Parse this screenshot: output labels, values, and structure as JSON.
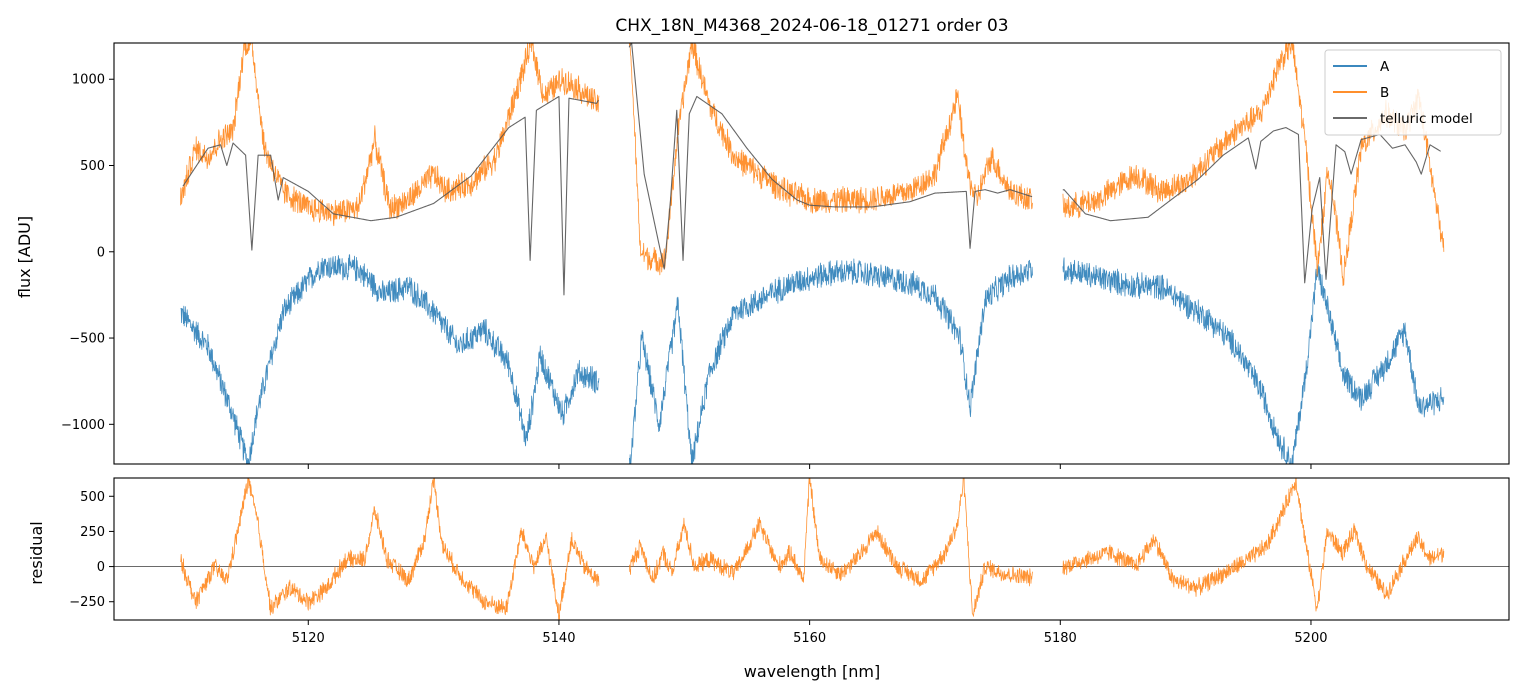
{
  "figure": {
    "title": "CHX_18N_M4368_2024-06-18_01271  order 03"
  },
  "chart_data": [
    {
      "type": "line",
      "panel": "top",
      "ylabel": "flux [ADU]",
      "xlim": [
        5104.5,
        5215.8
      ],
      "ylim": [
        -1230,
        1210
      ],
      "y_ticks": [
        1000,
        500,
        0,
        -500,
        -1000
      ],
      "y_tick_labels": [
        "1000",
        "500",
        "0",
        "−500",
        "−1000"
      ],
      "x_ticks": [
        5120,
        5140,
        5160,
        5180,
        5200
      ],
      "x_tick_labels_visible": false,
      "gaps": [
        [
          5143.2,
          5145.6
        ],
        [
          5177.8,
          5180.2
        ]
      ],
      "legend": {
        "placement": "top-right",
        "entries": [
          "A",
          "B",
          "telluric model"
        ]
      },
      "series": [
        {
          "name": "A",
          "color": "#1f77b4",
          "description_points_x": [
            5109.8,
            5112,
            5114,
            5115.2,
            5116,
            5118,
            5121,
            5124,
            5126,
            5128,
            5130,
            5132,
            5134,
            5136,
            5137.4,
            5138.5,
            5140.3,
            5141.5,
            5143.1,
            5145.7,
            5146.6,
            5148,
            5149.5,
            5150.6,
            5152,
            5154,
            5156,
            5158,
            5160,
            5162,
            5164,
            5166,
            5168,
            5170,
            5172,
            5172.8,
            5174,
            5176,
            5177.7,
            5180.3,
            5183,
            5186,
            5188,
            5190,
            5192,
            5194,
            5196,
            5197.5,
            5198.5,
            5199.6,
            5200.5,
            5201.4,
            5202.5,
            5204,
            5206,
            5207.5,
            5208.6,
            5210.6
          ],
          "values": [
            -350,
            -550,
            -950,
            -1230,
            -900,
            -350,
            -80,
            -100,
            -250,
            -200,
            -350,
            -550,
            -450,
            -650,
            -1100,
            -600,
            -950,
            -700,
            -750,
            -1230,
            -500,
            -1000,
            -300,
            -1230,
            -700,
            -350,
            -280,
            -200,
            -150,
            -120,
            -120,
            -150,
            -180,
            -250,
            -500,
            -900,
            -280,
            -150,
            -100,
            -100,
            -150,
            -200,
            -200,
            -300,
            -400,
            -550,
            -800,
            -1100,
            -1230,
            -700,
            -100,
            -350,
            -700,
            -850,
            -650,
            -450,
            -900,
            -850
          ]
        },
        {
          "name": "B",
          "color": "#ff7f0e",
          "description_points_x": [
            5109.8,
            5111,
            5112,
            5113,
            5114,
            5114.9,
            5115.5,
            5116.5,
            5118,
            5120,
            5122,
            5124,
            5125.3,
            5126.5,
            5128,
            5130,
            5131,
            5133,
            5135,
            5136.5,
            5137.8,
            5138.8,
            5140.3,
            5141.5,
            5143.1,
            5145.7,
            5146.5,
            5147.5,
            5148.5,
            5149.5,
            5150.6,
            5152,
            5154,
            5156,
            5158,
            5160,
            5162,
            5164,
            5166,
            5168,
            5170,
            5171.8,
            5172.6,
            5173.3,
            5174.5,
            5176,
            5177.7,
            5180.3,
            5183,
            5186,
            5188,
            5190,
            5192,
            5194,
            5196,
            5197.5,
            5198.5,
            5199.6,
            5200.5,
            5201.4,
            5202.6,
            5204,
            5206,
            5207.5,
            5208.6,
            5210.6
          ],
          "values": [
            300,
            600,
            550,
            650,
            700,
            1200,
            1210,
            600,
            350,
            250,
            230,
            250,
            650,
            250,
            300,
            450,
            350,
            400,
            550,
            900,
            1210,
            900,
            1000,
            950,
            850,
            1210,
            0,
            -50,
            -50,
            700,
            1210,
            850,
            550,
            450,
            350,
            300,
            300,
            300,
            320,
            350,
            450,
            900,
            450,
            300,
            550,
            350,
            300,
            250,
            300,
            450,
            350,
            400,
            550,
            700,
            800,
            1100,
            1210,
            600,
            -100,
            500,
            -150,
            600,
            800,
            700,
            900,
            0
          ]
        },
        {
          "name": "telluric model",
          "color": "#555555",
          "description_points_x": [
            5110,
            5112,
            5113,
            5113.5,
            5114,
            5115,
            5115.5,
            5116,
            5117,
            5117.6,
            5118,
            5120,
            5122,
            5125,
            5127,
            5130,
            5133,
            5136,
            5137.3,
            5137.7,
            5138.2,
            5140,
            5140.4,
            5140.8,
            5143,
            5145.8,
            5146.8,
            5148.4,
            5148.9,
            5149.4,
            5149.9,
            5150.4,
            5151,
            5153,
            5155,
            5157,
            5159,
            5160,
            5162,
            5165,
            5168,
            5170,
            5172.5,
            5172.8,
            5173.2,
            5174,
            5175,
            5176,
            5177.7,
            5180.3,
            5182,
            5184,
            5187,
            5189,
            5191,
            5193,
            5195,
            5195.6,
            5196,
            5197,
            5198,
            5199,
            5199.5,
            5200.1,
            5200.7,
            5201.2,
            5202,
            5202.7,
            5203.2,
            5204,
            5205.5,
            5206.5,
            5207.5,
            5208.4,
            5208.8,
            5209.5,
            5210.4
          ],
          "values": [
            380,
            600,
            620,
            500,
            630,
            560,
            10,
            560,
            560,
            300,
            430,
            350,
            220,
            180,
            200,
            280,
            440,
            720,
            780,
            -50,
            820,
            900,
            -250,
            890,
            860,
            1210,
            450,
            -100,
            300,
            820,
            -50,
            800,
            900,
            800,
            600,
            420,
            300,
            270,
            260,
            260,
            290,
            340,
            350,
            20,
            350,
            360,
            340,
            360,
            320,
            360,
            220,
            180,
            200,
            310,
            420,
            560,
            660,
            480,
            640,
            700,
            720,
            680,
            -180,
            250,
            430,
            -160,
            620,
            580,
            450,
            650,
            680,
            600,
            620,
            520,
            450,
            620,
            580
          ]
        }
      ]
    },
    {
      "type": "line",
      "panel": "bottom",
      "xlabel": "wavelength [nm]",
      "ylabel": "residual",
      "xlim": [
        5104.5,
        5215.8
      ],
      "ylim": [
        -380,
        630
      ],
      "x_ticks": [
        5120,
        5140,
        5160,
        5180,
        5200
      ],
      "x_tick_labels": [
        "5120",
        "5140",
        "5160",
        "5180",
        "5200"
      ],
      "y_ticks": [
        500,
        250,
        0,
        -250
      ],
      "y_tick_labels": [
        "500",
        "250",
        "0",
        "−250"
      ],
      "reference_line": 0,
      "series": [
        {
          "color": "#ff7f0e",
          "description_points_x": [
            5109.8,
            5111,
            5112.5,
            5113.5,
            5114.5,
            5115.2,
            5116,
            5117,
            5118.5,
            5120,
            5121.5,
            5123,
            5124.5,
            5125.3,
            5126.3,
            5128,
            5129.3,
            5130,
            5130.7,
            5132,
            5134,
            5135.8,
            5137,
            5138,
            5139,
            5140,
            5141,
            5142,
            5143.1,
            5145.7,
            5146.5,
            5147.5,
            5148.3,
            5149,
            5150,
            5150.8,
            5152,
            5154,
            5156,
            5157.5,
            5158.5,
            5159.5,
            5160,
            5160.8,
            5162.5,
            5164,
            5165.3,
            5167,
            5169,
            5170.8,
            5171.8,
            5172.3,
            5173,
            5174,
            5175.5,
            5177.7,
            5180.3,
            5182,
            5184,
            5186,
            5187.5,
            5189,
            5191,
            5193,
            5195,
            5196.5,
            5197.8,
            5198.8,
            5199.6,
            5200.5,
            5201.3,
            5202.5,
            5203.5,
            5204.5,
            5206,
            5207.5,
            5208.5,
            5209.5,
            5210.6
          ],
          "values": [
            50,
            -250,
            0,
            -100,
            300,
            620,
            300,
            -300,
            -150,
            -250,
            -150,
            50,
            50,
            400,
            50,
            -100,
            200,
            630,
            150,
            -50,
            -250,
            -300,
            250,
            0,
            200,
            -350,
            200,
            0,
            -100,
            0,
            150,
            -100,
            100,
            -50,
            300,
            0,
            50,
            -50,
            300,
            0,
            100,
            -100,
            630,
            50,
            -50,
            80,
            250,
            0,
            -100,
            100,
            300,
            630,
            -350,
            0,
            -50,
            -80,
            0,
            50,
            100,
            0,
            200,
            -100,
            -150,
            -50,
            50,
            150,
            400,
            620,
            150,
            -300,
            250,
            100,
            250,
            0,
            -200,
            50,
            200,
            50,
            100
          ]
        }
      ]
    }
  ]
}
